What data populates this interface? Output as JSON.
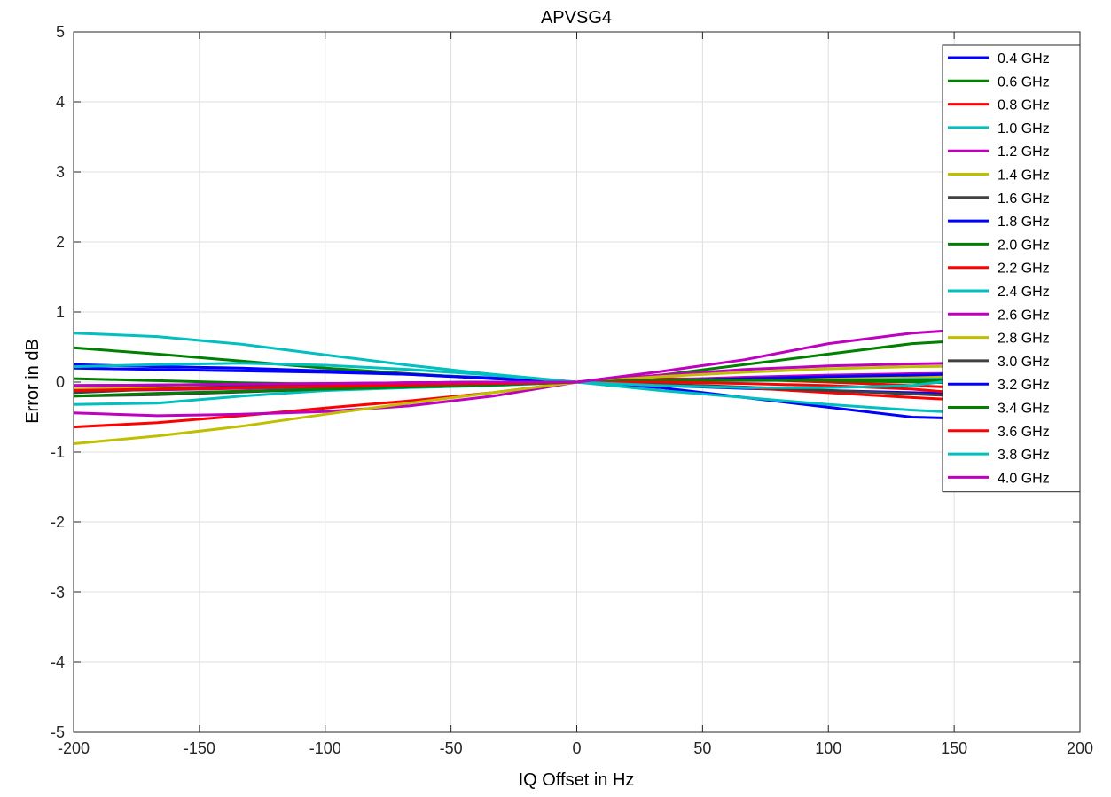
{
  "chart_data": {
    "type": "line",
    "title": "APVSG4",
    "xlabel": "IQ Offset in Hz",
    "ylabel": "Error in dB",
    "xlim": [
      -200,
      200
    ],
    "ylim": [
      -5,
      5
    ],
    "x_ticks": [
      -200,
      -150,
      -100,
      -50,
      0,
      50,
      100,
      150,
      200
    ],
    "y_ticks": [
      -5,
      -4,
      -3,
      -2,
      -1,
      0,
      1,
      2,
      3,
      4,
      5
    ],
    "grid": true,
    "legend_position": "top-right",
    "x": [
      -200,
      -166.7,
      -133.3,
      -100,
      -66.7,
      -33.3,
      0,
      33.3,
      66.7,
      100,
      133.3,
      166.7,
      200
    ],
    "series": [
      {
        "name": "0.4 GHz",
        "color": "#0000ff",
        "values": [
          0.2,
          0.18,
          0.16,
          0.14,
          0.11,
          0.06,
          0,
          -0.08,
          -0.22,
          -0.36,
          -0.5,
          -0.53,
          -0.52
        ]
      },
      {
        "name": "0.6 GHz",
        "color": "#008000",
        "values": [
          0.49,
          0.4,
          0.3,
          0.2,
          0.12,
          0.05,
          0,
          0.1,
          0.25,
          0.4,
          0.55,
          0.62,
          0.69
        ]
      },
      {
        "name": "0.8 GHz",
        "color": "#ff0000",
        "values": [
          -0.64,
          -0.58,
          -0.48,
          -0.37,
          -0.27,
          -0.15,
          0,
          0.05,
          0.04,
          0.0,
          -0.05,
          -0.1,
          -0.15
        ]
      },
      {
        "name": "1.0 GHz",
        "color": "#00bfbf",
        "values": [
          -0.32,
          -0.3,
          -0.2,
          -0.12,
          -0.08,
          -0.05,
          0,
          0.01,
          0.02,
          0.03,
          0.05,
          0.1,
          0.15
        ]
      },
      {
        "name": "1.2 GHz",
        "color": "#bf00bf",
        "values": [
          -0.44,
          -0.48,
          -0.46,
          -0.42,
          -0.34,
          -0.2,
          0,
          0.1,
          0.18,
          0.23,
          0.26,
          0.28,
          0.3
        ]
      },
      {
        "name": "1.4 GHz",
        "color": "#bfbf00",
        "values": [
          -0.88,
          -0.77,
          -0.63,
          -0.46,
          -0.3,
          -0.15,
          0,
          0.08,
          0.14,
          0.19,
          0.22,
          0.23,
          0.24
        ]
      },
      {
        "name": "1.6 GHz",
        "color": "#404040",
        "values": [
          -0.2,
          -0.18,
          -0.14,
          -0.1,
          -0.07,
          -0.04,
          0,
          0.03,
          0.06,
          0.09,
          0.11,
          0.12,
          0.13
        ]
      },
      {
        "name": "1.8 GHz",
        "color": "#0000ff",
        "values": [
          0.25,
          0.22,
          0.2,
          0.16,
          0.11,
          0.05,
          0,
          -0.05,
          -0.09,
          -0.12,
          -0.15,
          -0.18,
          -0.2
        ]
      },
      {
        "name": "2.0 GHz",
        "color": "#008000",
        "values": [
          0.05,
          0.02,
          -0.01,
          -0.03,
          -0.04,
          -0.03,
          0,
          0.02,
          0.03,
          0.03,
          0.03,
          0.02,
          0.02
        ]
      },
      {
        "name": "2.2 GHz",
        "color": "#ff0000",
        "values": [
          -0.05,
          -0.05,
          -0.04,
          -0.03,
          -0.02,
          -0.01,
          0,
          -0.03,
          -0.08,
          -0.15,
          -0.22,
          -0.28,
          -0.32
        ]
      },
      {
        "name": "2.4 GHz",
        "color": "#00bfbf",
        "values": [
          0.7,
          0.65,
          0.54,
          0.39,
          0.24,
          0.11,
          0,
          -0.12,
          -0.22,
          -0.32,
          -0.4,
          -0.46,
          -0.5
        ]
      },
      {
        "name": "2.6 GHz",
        "color": "#bf00bf",
        "values": [
          -0.12,
          -0.11,
          -0.09,
          -0.07,
          -0.05,
          -0.03,
          0,
          0.03,
          0.07,
          0.1,
          0.12,
          0.13,
          0.14
        ]
      },
      {
        "name": "2.8 GHz",
        "color": "#bfbf00",
        "values": [
          -0.1,
          -0.08,
          -0.06,
          -0.05,
          -0.04,
          -0.02,
          0,
          0.02,
          0.04,
          0.06,
          0.08,
          0.09,
          0.1
        ]
      },
      {
        "name": "3.0 GHz",
        "color": "#404040",
        "values": [
          -0.15,
          -0.1,
          -0.06,
          -0.03,
          -0.01,
          0.0,
          0,
          -0.03,
          -0.07,
          -0.12,
          -0.17,
          -0.22,
          -0.26
        ]
      },
      {
        "name": "3.2 GHz",
        "color": "#0000ff",
        "values": [
          -0.05,
          -0.04,
          -0.03,
          -0.02,
          -0.01,
          0.0,
          0,
          0.02,
          0.05,
          0.08,
          0.1,
          0.13,
          0.17
        ]
      },
      {
        "name": "3.4 GHz",
        "color": "#008000",
        "values": [
          -0.2,
          -0.16,
          -0.13,
          -0.1,
          -0.07,
          -0.04,
          0,
          0.03,
          0.03,
          0.02,
          0.0,
          -0.02,
          -0.04
        ]
      },
      {
        "name": "3.6 GHz",
        "color": "#ff0000",
        "values": [
          -0.12,
          -0.1,
          -0.08,
          -0.06,
          -0.04,
          -0.02,
          0,
          0.0,
          -0.02,
          -0.05,
          -0.1,
          -0.2,
          -0.38
        ]
      },
      {
        "name": "3.8 GHz",
        "color": "#00bfbf",
        "values": [
          0.22,
          0.25,
          0.27,
          0.24,
          0.18,
          0.1,
          0,
          -0.05,
          -0.08,
          -0.08,
          -0.05,
          0.1,
          0.42
        ]
      },
      {
        "name": "4.0 GHz",
        "color": "#bf00bf",
        "values": [
          -0.05,
          -0.04,
          -0.03,
          -0.02,
          -0.01,
          0.0,
          0,
          0.15,
          0.32,
          0.55,
          0.7,
          0.78,
          0.82
        ]
      }
    ]
  }
}
